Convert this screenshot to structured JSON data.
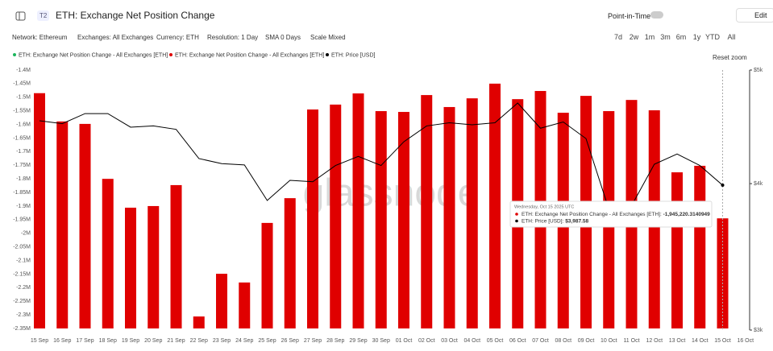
{
  "header": {
    "badge": "T2",
    "title": "ETH: Exchange Net Position Change",
    "point_in_time": "Point-in-Time",
    "edit": "Edit"
  },
  "toolbar": {
    "filters": [
      "Network: Ethereum",
      "Exchanges: All Exchanges",
      "Currency: ETH",
      "Resolution: 1 Day",
      "SMA 0 Days",
      "Scale Mixed"
    ],
    "ranges": [
      "7d",
      "2w",
      "1m",
      "3m",
      "6m",
      "1y",
      "YTD",
      "All"
    ]
  },
  "reset_zoom": "Reset zoom",
  "watermark": "glassnode",
  "tooltip": {
    "date": "Wednesday, Oct 15 2025 UTC",
    "rows": [
      {
        "label": "ETH: Exchange Net Position Change - All Exchanges [ETH]: ",
        "value": "-1,945,220.3140949",
        "color": "#e00000"
      },
      {
        "label": "ETH: Price [USD]: ",
        "value": "$3,987.58",
        "color": "#000000"
      }
    ]
  },
  "chart_data": {
    "type": "bar-line",
    "legend": [
      {
        "name": "ETH: Exchange Net Position Change - All Exchanges [ETH]",
        "color": "#1bb55c"
      },
      {
        "name": "ETH: Exchange Net Position Change - All Exchanges [ETH]",
        "color": "#e00000"
      },
      {
        "name": "ETH: Price [USD]",
        "color": "#000000"
      }
    ],
    "categories": [
      "15 Sep",
      "16 Sep",
      "17 Sep",
      "18 Sep",
      "19 Sep",
      "20 Sep",
      "21 Sep",
      "22 Sep",
      "23 Sep",
      "24 Sep",
      "25 Sep",
      "26 Sep",
      "27 Sep",
      "28 Sep",
      "29 Sep",
      "30 Sep",
      "01 Oct",
      "02 Oct",
      "03 Oct",
      "04 Oct",
      "05 Oct",
      "06 Oct",
      "07 Oct",
      "08 Oct",
      "09 Oct",
      "10 Oct",
      "11 Oct",
      "12 Oct",
      "13 Oct",
      "14 Oct",
      "15 Oct",
      "16 Oct"
    ],
    "series": [
      {
        "name": "ETH: Exchange Net Position Change - All Exchanges [ETH]",
        "color": "#e00000",
        "values": [
          -1485000,
          -1589000,
          -1598000,
          -1800000,
          -1906000,
          -1900000,
          -1823000,
          -2306000,
          -2149000,
          -2181000,
          -1962000,
          -1871000,
          -1545000,
          -1527000,
          -1486000,
          -1551000,
          -1554000,
          -1492000,
          -1536000,
          -1504000,
          -1450000,
          -1507000,
          -1477000,
          -1557000,
          -1495000,
          -1551000,
          -1510000,
          -1548000,
          -1776000,
          -1752000,
          -1945220.3140949,
          null
        ]
      },
      {
        "name": "ETH: Price [USD]",
        "color": "#000000",
        "axis": "y2",
        "values": [
          4526,
          4500,
          4590,
          4590,
          4469,
          4480,
          4450,
          4202,
          4160,
          4150,
          3870,
          4026,
          4015,
          4145,
          4220,
          4145,
          4343,
          4480,
          4508,
          4490,
          4508,
          4686,
          4460,
          4515,
          4370,
          3806,
          3830,
          4155,
          4240,
          4145,
          3987.58,
          null
        ]
      }
    ],
    "ylim": [
      -1400000,
      -2350000
    ],
    "yticks": [
      {
        "value": -1400000,
        "label": "-1.4M"
      },
      {
        "value": -1450000,
        "label": "-1.45M"
      },
      {
        "value": -1500000,
        "label": "-1.5M"
      },
      {
        "value": -1550000,
        "label": "-1.55M"
      },
      {
        "value": -1600000,
        "label": "-1.6M"
      },
      {
        "value": -1650000,
        "label": "-1.65M"
      },
      {
        "value": -1700000,
        "label": "-1.7M"
      },
      {
        "value": -1750000,
        "label": "-1.75M"
      },
      {
        "value": -1800000,
        "label": "-1.8M"
      },
      {
        "value": -1850000,
        "label": "-1.85M"
      },
      {
        "value": -1900000,
        "label": "-1.9M"
      },
      {
        "value": -1950000,
        "label": "-1.95M"
      },
      {
        "value": -2000000,
        "label": "-2M"
      },
      {
        "value": -2050000,
        "label": "-2.05M"
      },
      {
        "value": -2100000,
        "label": "-2.1M"
      },
      {
        "value": -2150000,
        "label": "-2.15M"
      },
      {
        "value": -2200000,
        "label": "-2.2M"
      },
      {
        "value": -2250000,
        "label": "-2.25M"
      },
      {
        "value": -2300000,
        "label": "-2.3M"
      },
      {
        "value": -2350000,
        "label": "-2.35M"
      }
    ],
    "y2lim": [
      5000,
      3000
    ],
    "y2log": true,
    "y2ticks": [
      {
        "value": 5000,
        "label": "$5k"
      },
      {
        "value": 4000,
        "label": "$4k"
      },
      {
        "value": 3000,
        "label": "$3k"
      }
    ],
    "grid": false
  }
}
